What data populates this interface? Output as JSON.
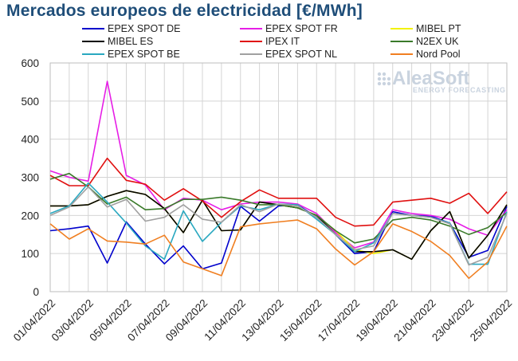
{
  "title": "Mercados europeos de electricidad [€/MWh]",
  "watermark": {
    "brand": "AleaSoft",
    "tagline": "ENERGY FORECASTING"
  },
  "chart_data": {
    "type": "line",
    "title": "Mercados europeos de electricidad [€/MWh]",
    "ylim": [
      0,
      600
    ],
    "yticks": [
      0,
      100,
      200,
      300,
      400,
      500,
      600
    ],
    "grid": true,
    "legend_position": "top",
    "x": [
      "01/04/2022",
      "02/04/2022",
      "03/04/2022",
      "04/04/2022",
      "05/04/2022",
      "06/04/2022",
      "07/04/2022",
      "08/04/2022",
      "09/04/2022",
      "10/04/2022",
      "11/04/2022",
      "12/04/2022",
      "13/04/2022",
      "14/04/2022",
      "15/04/2022",
      "16/04/2022",
      "17/04/2022",
      "18/04/2022",
      "19/04/2022",
      "20/04/2022",
      "21/04/2022",
      "22/04/2022",
      "23/04/2022",
      "24/04/2022",
      "25/04/2022"
    ],
    "xtick_labels": [
      "01/04/2022",
      "03/04/2022",
      "05/04/2022",
      "07/04/2022",
      "09/04/2022",
      "11/04/2022",
      "13/04/2022",
      "15/04/2022",
      "17/04/2022",
      "19/04/2022",
      "21/04/2022",
      "23/04/2022",
      "25/04/2022"
    ],
    "series": [
      {
        "name": "EPEX SPOT DE",
        "color": "#0000cc",
        "values": [
          160,
          165,
          172,
          75,
          183,
          125,
          73,
          120,
          60,
          75,
          224,
          185,
          225,
          228,
          195,
          150,
          100,
          105,
          210,
          200,
          198,
          180,
          90,
          108,
          224
        ]
      },
      {
        "name": "EPEX SPOT FR",
        "color": "#e61ee6",
        "values": [
          317,
          300,
          290,
          552,
          305,
          280,
          215,
          245,
          240,
          215,
          230,
          235,
          235,
          230,
          205,
          155,
          115,
          130,
          215,
          205,
          200,
          190,
          165,
          148,
          215
        ]
      },
      {
        "name": "MIBEL PT",
        "color": "#f2f200",
        "values": [
          225,
          225,
          228,
          250,
          265,
          255,
          218,
          155,
          240,
          160,
          162,
          235,
          228,
          220,
          200,
          160,
          110,
          100,
          110,
          85,
          160,
          210,
          88,
          148,
          228
        ]
      },
      {
        "name": "MIBEL ES",
        "color": "#000000",
        "values": [
          225,
          225,
          228,
          250,
          265,
          255,
          218,
          155,
          240,
          160,
          162,
          235,
          228,
          220,
          200,
          150,
          105,
          105,
          110,
          85,
          160,
          210,
          88,
          148,
          228
        ]
      },
      {
        "name": "IPEX IT",
        "color": "#e01010",
        "values": [
          305,
          278,
          278,
          350,
          292,
          282,
          240,
          270,
          238,
          195,
          236,
          267,
          245,
          245,
          245,
          195,
          172,
          175,
          235,
          240,
          245,
          232,
          258,
          205,
          262
        ]
      },
      {
        "name": "N2EX UK",
        "color": "#3a7a2a",
        "values": [
          295,
          310,
          275,
          230,
          248,
          215,
          218,
          242,
          242,
          248,
          240,
          228,
          228,
          220,
          200,
          160,
          128,
          138,
          188,
          195,
          188,
          172,
          150,
          168,
          208
        ]
      },
      {
        "name": "EPEX SPOT BE",
        "color": "#2aa8c0",
        "values": [
          205,
          225,
          285,
          235,
          180,
          120,
          85,
          212,
          132,
          182,
          225,
          215,
          230,
          228,
          190,
          150,
          105,
          128,
          205,
          200,
          195,
          180,
          72,
          72,
          210
        ]
      },
      {
        "name": "EPEX SPOT NL",
        "color": "#a0a0a0",
        "values": [
          200,
          222,
          275,
          222,
          242,
          185,
          195,
          228,
          190,
          182,
          228,
          210,
          230,
          225,
          195,
          150,
          110,
          120,
          205,
          200,
          195,
          178,
          70,
          90,
          205
        ]
      },
      {
        "name": "Nord Pool",
        "color": "#f07f21",
        "values": [
          178,
          138,
          165,
          133,
          130,
          125,
          148,
          78,
          60,
          42,
          170,
          178,
          183,
          188,
          165,
          112,
          70,
          105,
          178,
          158,
          132,
          95,
          35,
          78,
          172
        ]
      }
    ]
  }
}
